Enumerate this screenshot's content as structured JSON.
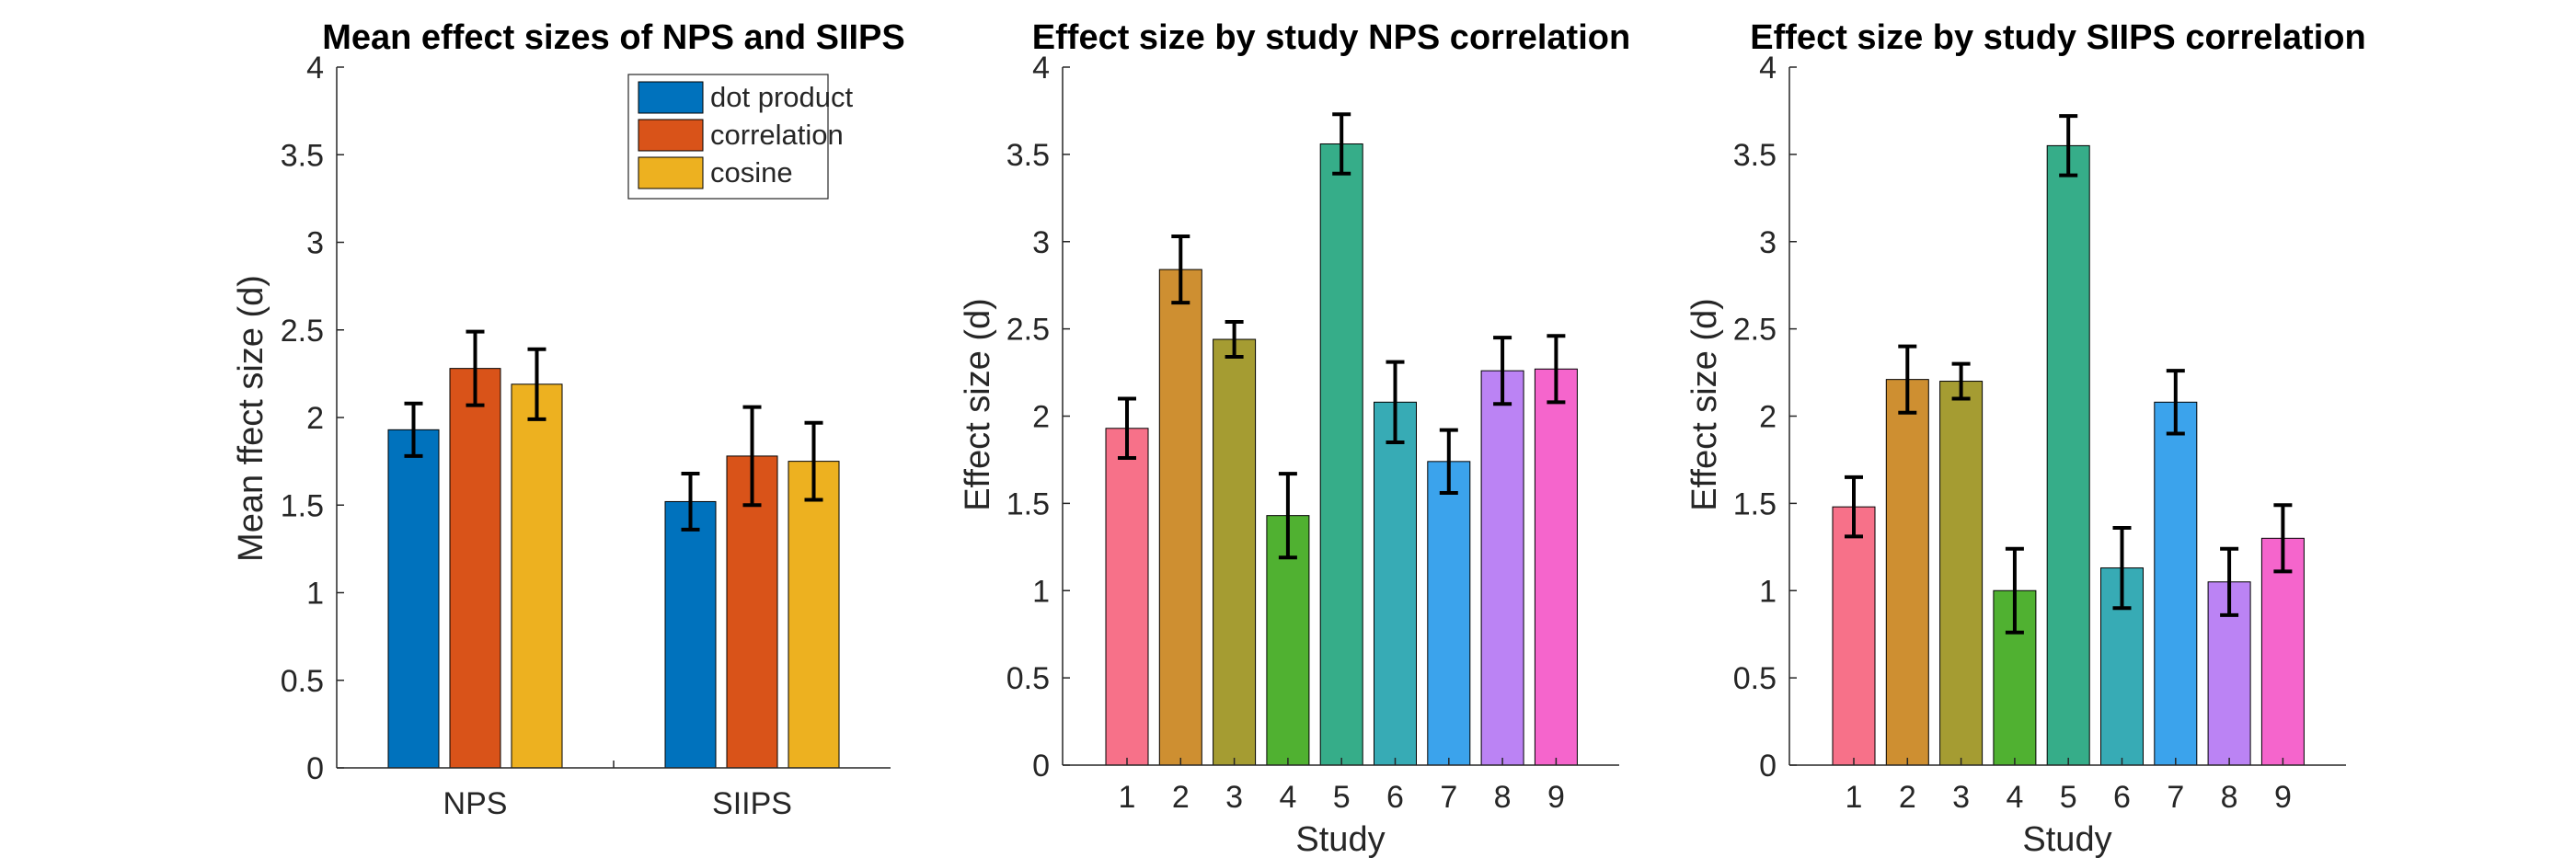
{
  "chart_data": [
    {
      "type": "bar",
      "title": "Mean effect sizes of NPS and SIIPS",
      "xlabel": "",
      "ylabel": "Mean ffect size (d)",
      "ylim": [
        0,
        4
      ],
      "yticks": [
        "0",
        "0.5",
        "1",
        "1.5",
        "2",
        "2.5",
        "3",
        "3.5",
        "4"
      ],
      "categories": [
        "NPS",
        "SIIPS"
      ],
      "series": [
        {
          "name": "dot product",
          "color": "#0072BD",
          "values": [
            1.93,
            1.52
          ],
          "err": [
            0.15,
            0.16
          ]
        },
        {
          "name": "correlation",
          "color": "#D95319",
          "values": [
            2.28,
            1.78
          ],
          "err": [
            0.21,
            0.28
          ]
        },
        {
          "name": "cosine",
          "color": "#EDB120",
          "values": [
            2.19,
            1.75
          ],
          "err": [
            0.2,
            0.22
          ]
        }
      ],
      "legend": "top-right",
      "grid": false
    },
    {
      "type": "bar",
      "title": "Effect size by study NPS correlation",
      "xlabel": "Study",
      "ylabel": "Effect size (d)",
      "ylim": [
        0,
        4
      ],
      "yticks": [
        "0",
        "0.5",
        "1",
        "1.5",
        "2",
        "2.5",
        "3",
        "3.5",
        "4"
      ],
      "categories": [
        "1",
        "2",
        "3",
        "4",
        "5",
        "6",
        "7",
        "8",
        "9"
      ],
      "values": [
        1.93,
        2.84,
        2.44,
        1.43,
        3.56,
        2.08,
        1.74,
        2.26,
        2.27
      ],
      "err": [
        0.17,
        0.19,
        0.1,
        0.24,
        0.17,
        0.23,
        0.18,
        0.19,
        0.19
      ],
      "colors": [
        "#F77189",
        "#CE8F31",
        "#A59C32",
        "#50B131",
        "#36AD89",
        "#37ABB5",
        "#3BA3EC",
        "#BB83F4",
        "#F565CC"
      ],
      "grid": false
    },
    {
      "type": "bar",
      "title": "Effect size by study SIIPS correlation",
      "xlabel": "Study",
      "ylabel": "Effect size (d)",
      "ylim": [
        0,
        4
      ],
      "yticks": [
        "0",
        "0.5",
        "1",
        "1.5",
        "2",
        "2.5",
        "3",
        "3.5",
        "4"
      ],
      "categories": [
        "1",
        "2",
        "3",
        "4",
        "5",
        "6",
        "7",
        "8",
        "9"
      ],
      "values": [
        1.48,
        2.21,
        2.2,
        1.0,
        3.55,
        1.13,
        2.08,
        1.05,
        1.3
      ],
      "err": [
        0.17,
        0.19,
        0.1,
        0.24,
        0.17,
        0.23,
        0.18,
        0.19,
        0.19
      ],
      "colors": [
        "#F77189",
        "#CE8F31",
        "#A59C32",
        "#50B131",
        "#36AD89",
        "#37ABB5",
        "#3BA3EC",
        "#BB83F4",
        "#F565CC"
      ],
      "grid": false
    }
  ]
}
